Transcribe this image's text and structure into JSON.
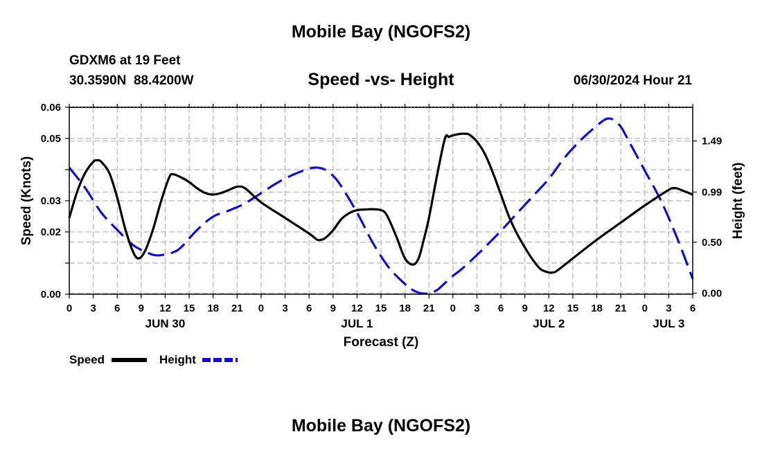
{
  "header": {
    "title": "Mobile Bay (NGOFS2)",
    "station": "GDXM6 at 19 Feet",
    "coords": "30.3590N  88.4200W",
    "subtitle": "Speed -vs- Height",
    "timestamp": "06/30/2024 Hour 21"
  },
  "footer": {
    "title": "Mobile Bay (NGOFS2)"
  },
  "colors": {
    "speed": "#000000",
    "height": "#1010c8",
    "grid": "#b4b4b4"
  },
  "chart_data": {
    "type": "line",
    "xlabel": "Forecast (Z)",
    "ylabel": "Speed (Knots)",
    "y2label": "Height (feet)",
    "xlim": [
      0,
      78
    ],
    "ylim": [
      0.0,
      0.06
    ],
    "y2lim": [
      -0.01,
      1.82
    ],
    "x_ticks": [
      0,
      3,
      6,
      9,
      12,
      15,
      18,
      21,
      24,
      27,
      30,
      33,
      36,
      39,
      42,
      45,
      48,
      51,
      54,
      57,
      60,
      63,
      66,
      69,
      72,
      75,
      78
    ],
    "x_tick_labels": [
      "0",
      "3",
      "6",
      "9",
      "12",
      "15",
      "18",
      "21",
      "0",
      "3",
      "6",
      "9",
      "12",
      "15",
      "18",
      "21",
      "0",
      "3",
      "6",
      "9",
      "12",
      "15",
      "18",
      "21",
      "0",
      "3",
      "6"
    ],
    "date_labels": [
      {
        "x": 12,
        "label": "JUN 30"
      },
      {
        "x": 36,
        "label": "JUL 1"
      },
      {
        "x": 60,
        "label": "JUL 2"
      },
      {
        "x": 75,
        "label": "JUL 3"
      }
    ],
    "y_ticks": [
      0.0,
      0.01,
      0.02,
      0.03,
      0.04,
      0.05,
      0.06
    ],
    "y_tick_labels": [
      "0.00",
      "",
      "0.02",
      "0.03",
      "",
      "0.05",
      "0.06"
    ],
    "y2_ticks": [
      0.0,
      0.5,
      0.99,
      1.49
    ],
    "y2_tick_labels": [
      "0.00",
      "0.50",
      "0.99",
      "1.49"
    ],
    "series": [
      {
        "name": "Speed",
        "axis": "left",
        "style": "solid",
        "x": [
          0,
          1,
          2,
          3,
          3.5,
          4,
          5,
          6,
          7,
          8,
          8.7,
          9.5,
          10.5,
          11.5,
          12.5,
          13,
          14,
          15,
          16,
          17,
          18,
          19,
          20,
          21,
          22,
          24,
          27,
          30,
          31,
          31.5,
          32,
          33,
          34,
          35,
          36,
          37,
          38,
          39,
          39.5,
          40,
          41,
          42,
          43,
          43.7,
          44.3,
          45,
          46,
          47,
          47.5,
          48,
          49,
          49.5,
          50,
          51,
          52,
          53,
          54,
          55,
          56,
          57,
          58,
          59,
          60,
          60.5,
          61,
          63,
          66,
          69,
          72,
          75,
          75.5,
          76,
          77,
          78
        ],
        "values": [
          0.0245,
          0.033,
          0.039,
          0.0425,
          0.043,
          0.0425,
          0.039,
          0.031,
          0.021,
          0.0135,
          0.0115,
          0.014,
          0.021,
          0.03,
          0.0375,
          0.0385,
          0.0375,
          0.036,
          0.034,
          0.0325,
          0.032,
          0.0325,
          0.0335,
          0.0345,
          0.034,
          0.0295,
          0.0245,
          0.0195,
          0.0175,
          0.0175,
          0.018,
          0.0205,
          0.024,
          0.026,
          0.027,
          0.0272,
          0.0273,
          0.027,
          0.0262,
          0.024,
          0.018,
          0.0115,
          0.0095,
          0.0115,
          0.017,
          0.0245,
          0.038,
          0.05,
          0.0505,
          0.051,
          0.0515,
          0.0515,
          0.0513,
          0.049,
          0.045,
          0.039,
          0.032,
          0.025,
          0.0195,
          0.015,
          0.011,
          0.008,
          0.007,
          0.007,
          0.0075,
          0.0115,
          0.0175,
          0.023,
          0.0285,
          0.0335,
          0.034,
          0.034,
          0.033,
          0.032
        ]
      },
      {
        "name": "Height",
        "axis": "right",
        "style": "dashed",
        "x": [
          0,
          2,
          4,
          6,
          8,
          10,
          11,
          12,
          13,
          14,
          16,
          18,
          20,
          22,
          24,
          26,
          28,
          30,
          31,
          32,
          33,
          34,
          36,
          38,
          40,
          42,
          43,
          44,
          45,
          46,
          47,
          48,
          49,
          50,
          52,
          54,
          56,
          58,
          60,
          62,
          64,
          66,
          67,
          67.5,
          68,
          69,
          70,
          72,
          74,
          76,
          78
        ],
        "values": [
          1.23,
          1.03,
          0.79,
          0.62,
          0.47,
          0.39,
          0.37,
          0.38,
          0.4,
          0.45,
          0.62,
          0.75,
          0.81,
          0.88,
          0.98,
          1.08,
          1.16,
          1.22,
          1.23,
          1.21,
          1.15,
          1.05,
          0.79,
          0.49,
          0.25,
          0.09,
          0.03,
          0.0,
          0.0,
          0.03,
          0.1,
          0.17,
          0.23,
          0.3,
          0.45,
          0.61,
          0.78,
          0.95,
          1.12,
          1.33,
          1.5,
          1.64,
          1.7,
          1.71,
          1.7,
          1.63,
          1.49,
          1.2,
          0.91,
          0.55,
          0.14
        ]
      }
    ],
    "legend": [
      {
        "label": "Speed",
        "style": "solid"
      },
      {
        "label": "Height",
        "style": "dashed"
      }
    ]
  }
}
